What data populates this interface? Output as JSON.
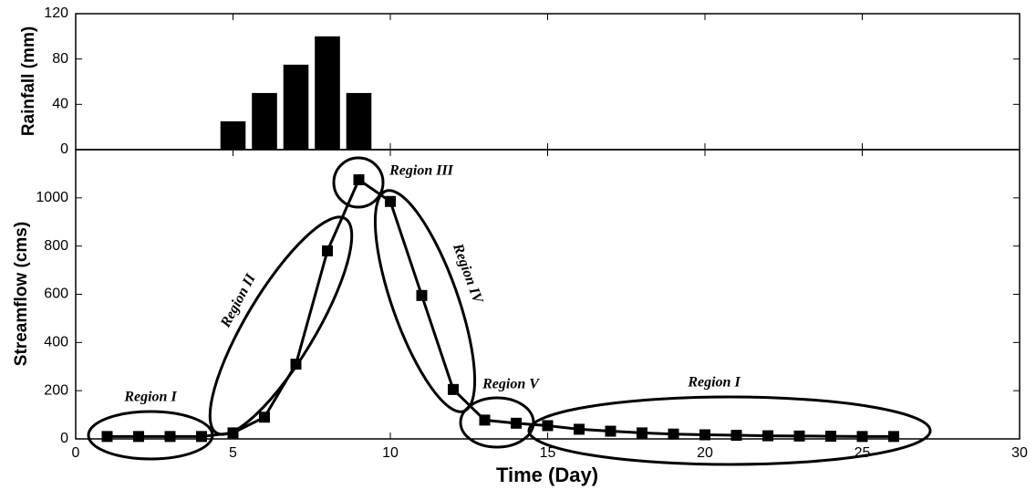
{
  "chart_data": [
    {
      "type": "bar",
      "ylabel": "Rainfall (mm)",
      "x": [
        5,
        6,
        7,
        8,
        9
      ],
      "values": [
        25,
        50,
        75,
        100,
        50
      ],
      "color": "#000000",
      "xlim": [
        0,
        30
      ],
      "ylim": [
        0,
        120
      ],
      "yticks": [
        0,
        40,
        80,
        120
      ]
    },
    {
      "type": "line",
      "xlabel": "Time (Day)",
      "ylabel": "Streamflow (cms)",
      "x": [
        1,
        2,
        3,
        4,
        5,
        6,
        7,
        8,
        9,
        10,
        11,
        12,
        13,
        14,
        15,
        16,
        17,
        18,
        19,
        20,
        21,
        22,
        23,
        24,
        25,
        26
      ],
      "values": [
        10,
        10,
        10,
        10,
        25,
        90,
        310,
        780,
        1075,
        985,
        595,
        205,
        78,
        65,
        55,
        40,
        32,
        25,
        20,
        17,
        15,
        13,
        12,
        11,
        10,
        10
      ],
      "color": "#000000",
      "xlim": [
        0,
        30
      ],
      "xticks": [
        0,
        5,
        10,
        15,
        20,
        25,
        30
      ],
      "ylim": [
        0,
        1200
      ],
      "yticks": [
        0,
        200,
        400,
        600,
        800,
        1000
      ],
      "annotations": [
        "Region I",
        "Region II",
        "Region III",
        "Region IV",
        "Region V",
        "Region I"
      ]
    }
  ]
}
